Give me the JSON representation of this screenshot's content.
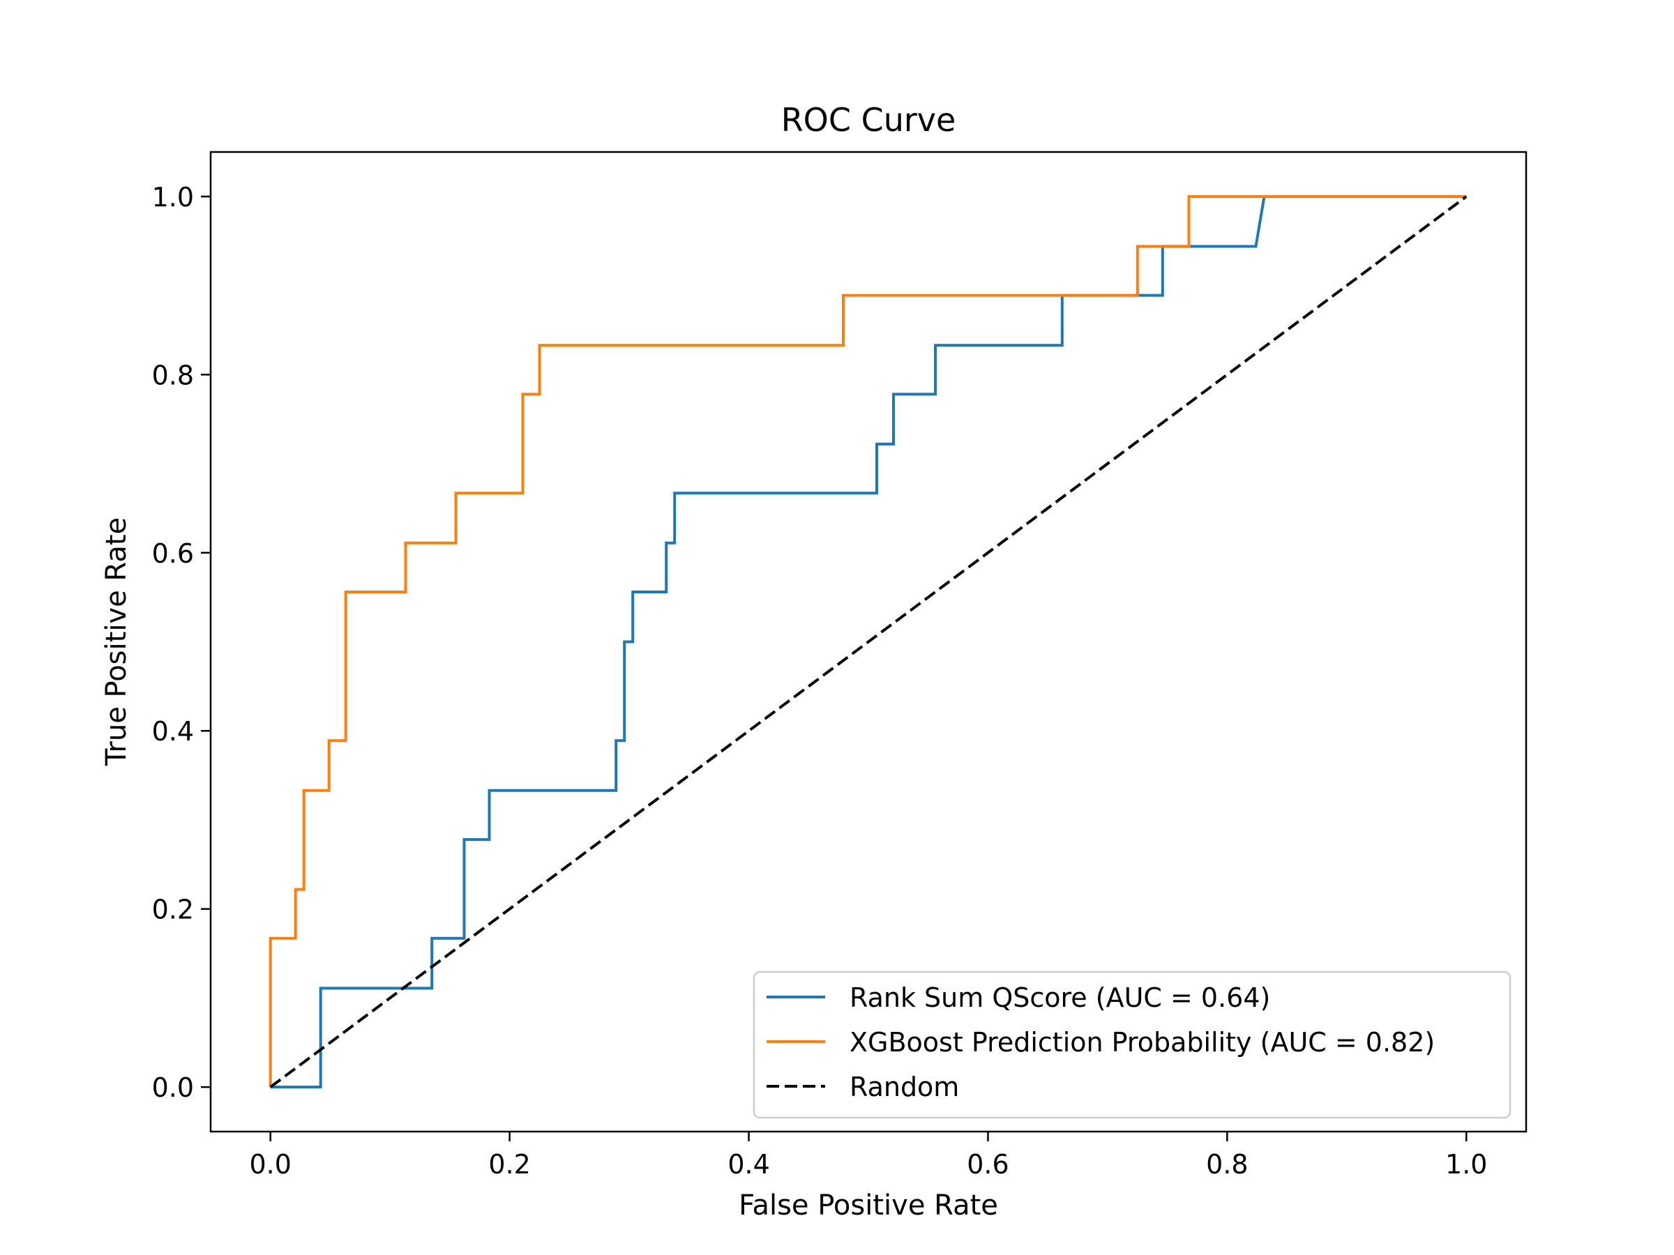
{
  "chart_data": {
    "type": "line",
    "title": "ROC Curve",
    "xlabel": "False Positive Rate",
    "ylabel": "True Positive Rate",
    "xlim": [
      -0.05,
      1.05
    ],
    "ylim": [
      -0.05,
      1.05
    ],
    "xticks": [
      0.0,
      0.2,
      0.4,
      0.6,
      0.8,
      1.0
    ],
    "yticks": [
      0.0,
      0.2,
      0.4,
      0.6,
      0.8,
      1.0
    ],
    "xtick_labels": [
      "0.0",
      "0.2",
      "0.4",
      "0.6",
      "0.8",
      "1.0"
    ],
    "ytick_labels": [
      "0.0",
      "0.2",
      "0.4",
      "0.6",
      "0.8",
      "1.0"
    ],
    "grid": false,
    "legend_position": "lower right",
    "series": [
      {
        "name": "Rank Sum QScore (AUC = 0.64)",
        "color": "#1f77b4",
        "style": "solid",
        "step": true,
        "x": [
          0.0,
          0.042,
          0.042,
          0.135,
          0.135,
          0.162,
          0.162,
          0.183,
          0.183,
          0.289,
          0.289,
          0.296,
          0.296,
          0.303,
          0.303,
          0.331,
          0.331,
          0.338,
          0.338,
          0.507,
          0.507,
          0.521,
          0.521,
          0.556,
          0.556,
          0.662,
          0.662,
          0.746,
          0.746,
          0.824,
          0.831,
          1.0
        ],
        "y": [
          0.0,
          0.0,
          0.111,
          0.111,
          0.167,
          0.167,
          0.278,
          0.278,
          0.333,
          0.333,
          0.389,
          0.389,
          0.5,
          0.5,
          0.556,
          0.556,
          0.611,
          0.611,
          0.667,
          0.667,
          0.722,
          0.722,
          0.778,
          0.778,
          0.833,
          0.833,
          0.889,
          0.889,
          0.944,
          0.944,
          1.0,
          1.0
        ]
      },
      {
        "name": "XGBoost Prediction Probability (AUC = 0.82)",
        "color": "#ff7f0e",
        "style": "solid",
        "step": true,
        "x": [
          0.0,
          0.0,
          0.021,
          0.021,
          0.028,
          0.028,
          0.049,
          0.049,
          0.063,
          0.063,
          0.113,
          0.113,
          0.155,
          0.155,
          0.211,
          0.211,
          0.225,
          0.225,
          0.479,
          0.479,
          0.725,
          0.725,
          0.768,
          0.768,
          1.0
        ],
        "y": [
          0.0,
          0.167,
          0.167,
          0.222,
          0.222,
          0.333,
          0.333,
          0.389,
          0.389,
          0.556,
          0.556,
          0.611,
          0.611,
          0.667,
          0.667,
          0.778,
          0.778,
          0.833,
          0.833,
          0.889,
          0.889,
          0.944,
          0.944,
          1.0,
          1.0
        ]
      },
      {
        "name": "Random",
        "color": "#000000",
        "style": "dashed",
        "step": false,
        "x": [
          0.0,
          1.0
        ],
        "y": [
          0.0,
          1.0
        ]
      }
    ]
  }
}
